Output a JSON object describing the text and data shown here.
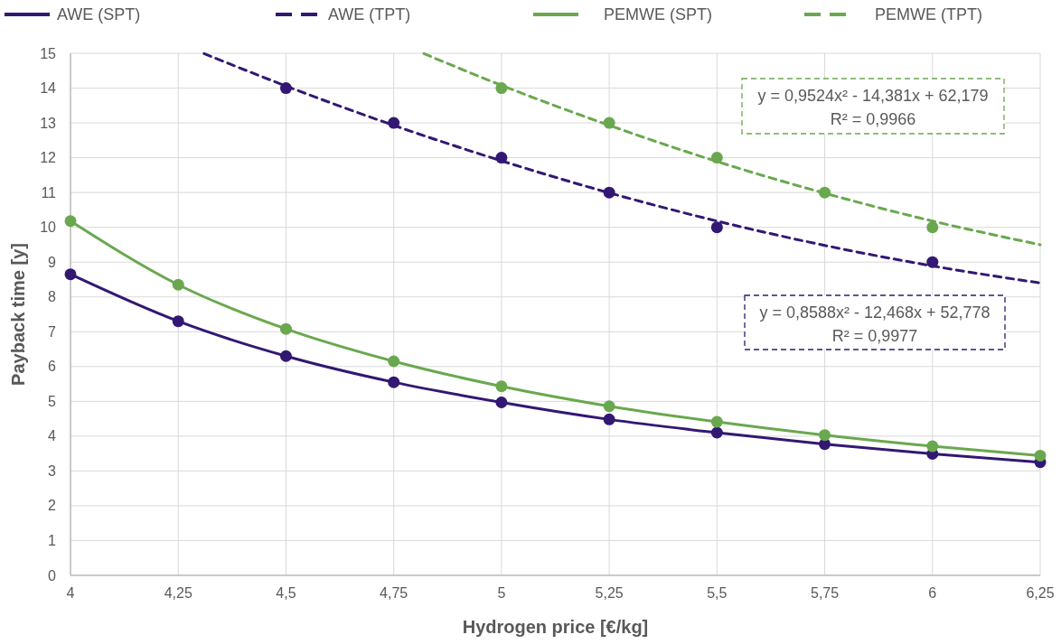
{
  "chart_data": {
    "type": "line",
    "xlabel": "Hydrogen price [€/kg]",
    "ylabel": "Payback time [y]",
    "xlim": [
      4,
      6.25
    ],
    "xticks": [
      4,
      {
        "value": 4.25,
        "label": "4,25"
      },
      {
        "value": 4.5,
        "label": "4,5"
      },
      {
        "value": 4.75,
        "label": "4,75"
      },
      5,
      {
        "value": 5.25,
        "label": "5,25"
      },
      {
        "value": 5.5,
        "label": "5,5"
      },
      {
        "value": 5.75,
        "label": "5,75"
      },
      6,
      {
        "value": 6.25,
        "label": "6,25"
      }
    ],
    "ylim": [
      0,
      15
    ],
    "yticks": [
      0,
      1,
      2,
      3,
      4,
      5,
      6,
      7,
      8,
      9,
      10,
      11,
      12,
      13,
      14,
      15
    ],
    "grid": true,
    "legend": "top",
    "line_style": "solid",
    "marker": "circle",
    "series": [
      {
        "name": "AWE (SPT)",
        "type": "line",
        "color": "#321873",
        "x": [
          4,
          4.25,
          4.5,
          4.75,
          5,
          5.25,
          5.5,
          5.75,
          6,
          6.25
        ],
        "values": [
          8.65,
          7.3,
          6.3,
          5.55,
          4.97,
          4.48,
          4.1,
          3.77,
          3.49,
          3.25
        ]
      },
      {
        "name": "AWE (TPT)",
        "type": "line",
        "line_style": "dashed",
        "marker": "none",
        "color": "#321873",
        "x": [
          4.31,
          4.5,
          4.75,
          5,
          5.25,
          5.5,
          5.75,
          6,
          6.25
        ],
        "values": [
          14.99,
          14.06,
          12.93,
          11.91,
          10.99,
          10.18,
          9.48,
          8.89,
          8.4
        ]
      },
      {
        "name": "PEMWE (SPT)",
        "type": "line",
        "color": "#6aa84f",
        "x": [
          4,
          4.25,
          4.5,
          4.75,
          5,
          5.25,
          5.5,
          5.75,
          6,
          6.25
        ],
        "values": [
          10.18,
          8.35,
          7.08,
          6.15,
          5.43,
          4.86,
          4.41,
          4.03,
          3.71,
          3.44
        ]
      },
      {
        "name": "PEMWE (TPT)",
        "type": "line",
        "line_style": "dashed",
        "marker": "none",
        "color": "#6aa84f",
        "x": [
          4.82,
          5,
          5.25,
          5.5,
          5.75,
          6,
          6.25
        ],
        "values": [
          14.99,
          14.08,
          12.93,
          11.89,
          10.98,
          10.18,
          9.5
        ]
      },
      {
        "type": "scatter",
        "color": "#321873",
        "x": [
          4.5,
          4.75,
          5,
          5.25,
          5.5,
          6
        ],
        "values": [
          14,
          13,
          12,
          11,
          10,
          9
        ]
      },
      {
        "type": "scatter",
        "color": "#6aa84f",
        "x": [
          5,
          5.25,
          5.5,
          5.75,
          6
        ],
        "values": [
          14,
          13,
          12,
          11,
          10
        ]
      }
    ],
    "annotations": [
      "y = 0,9524x² - 14,381x + 62,179\nR² = 0,9966",
      "y = 0,8588x² - 12,468x + 52,778\nR² = 0,9977"
    ]
  }
}
